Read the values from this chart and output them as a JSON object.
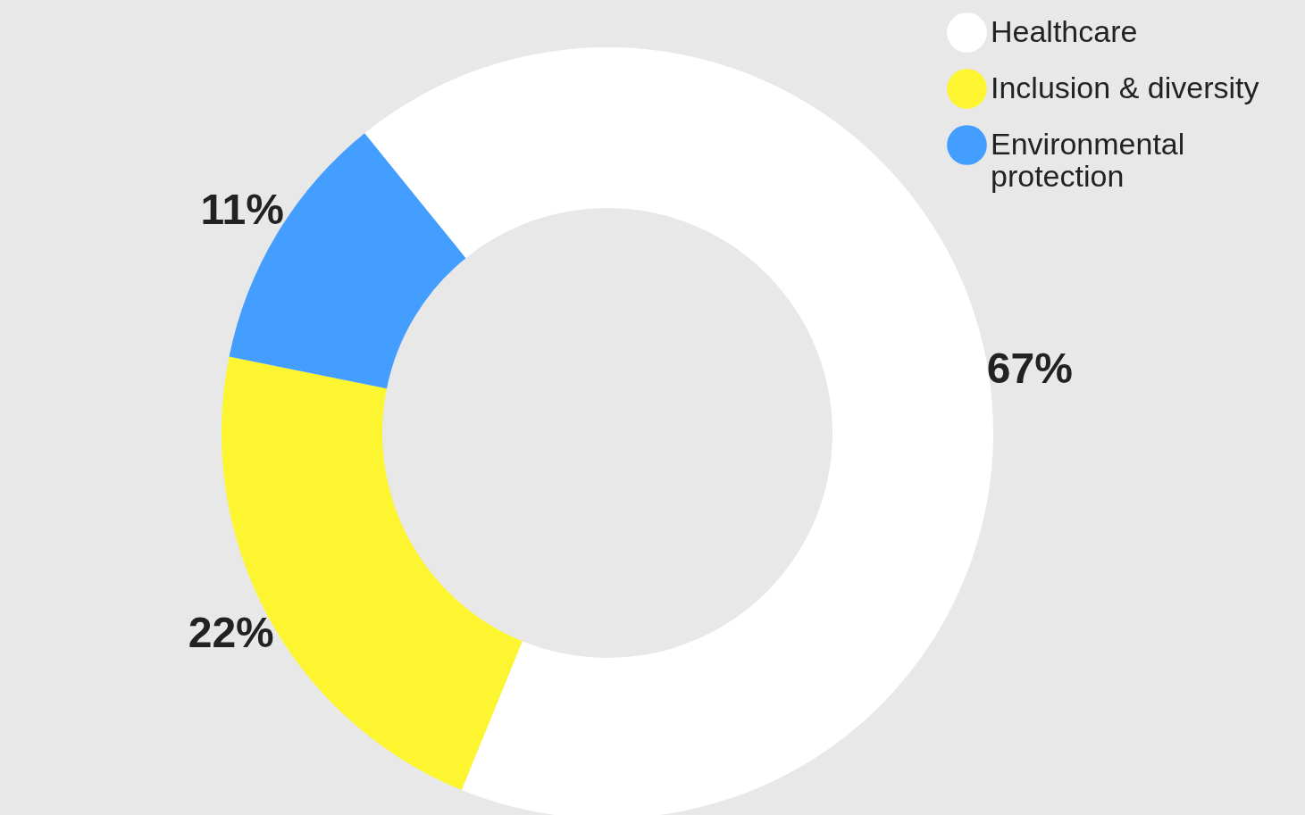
{
  "chart_data": {
    "type": "donut",
    "categories": [
      "Healthcare",
      "Inclusion & diversity",
      "Environmental protection"
    ],
    "values": [
      67,
      22,
      11
    ],
    "colors": [
      "#ffffff",
      "#fdf52f",
      "#449eff"
    ],
    "value_labels": [
      "67%",
      "22%",
      "11%"
    ],
    "legend": "top right"
  }
}
